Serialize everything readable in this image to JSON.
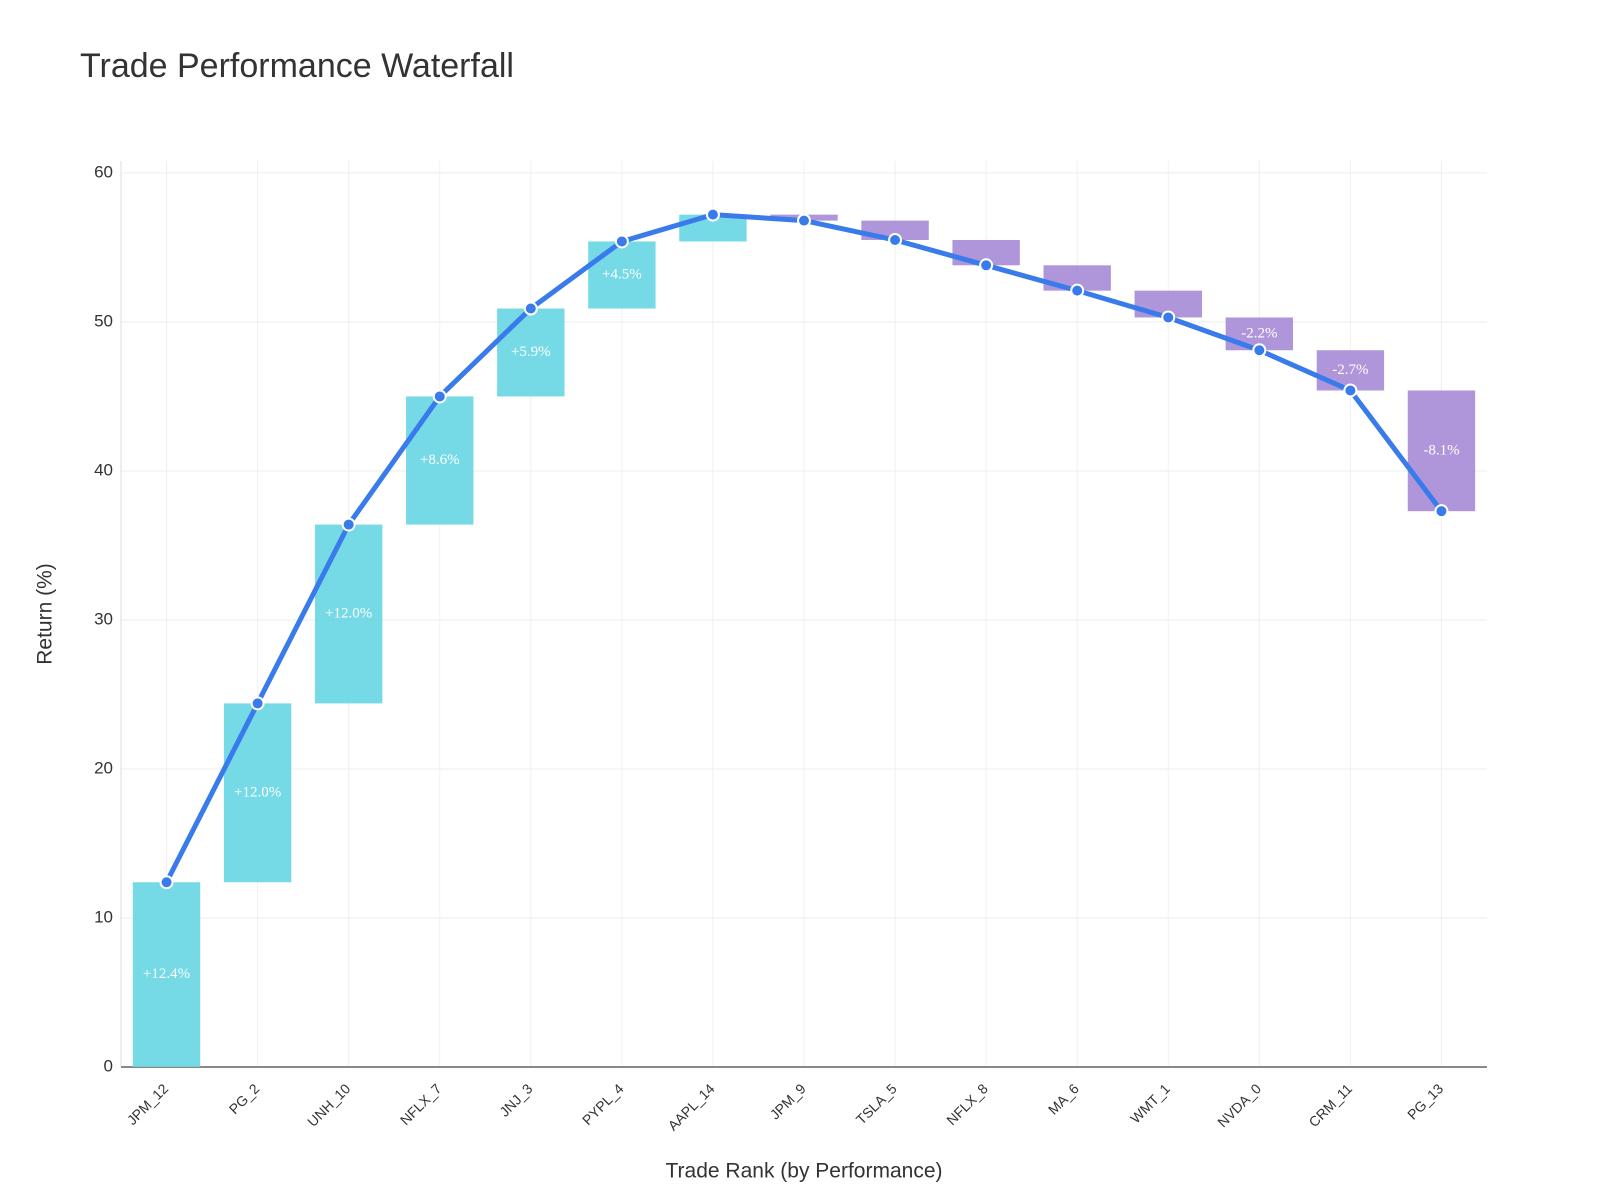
{
  "chart_data": {
    "type": "waterfall",
    "title": "Trade Performance Waterfall",
    "x_label": "Trade Rank (by Performance)",
    "y_label": "Return (%)",
    "categories": [
      "JPM_12",
      "PG_2",
      "UNH_10",
      "NFLX_7",
      "JNJ_3",
      "PYPL_4",
      "AAPL_14",
      "JPM_9",
      "TSLA_5",
      "NFLX_8",
      "MA_6",
      "WMT_1",
      "NVDA_0",
      "CRM_11",
      "PG_13"
    ],
    "values": [
      12.4,
      12.0,
      12.0,
      8.6,
      5.9,
      4.5,
      1.8,
      -0.4,
      -1.3,
      -1.7,
      -1.7,
      -1.8,
      -2.2,
      -2.7,
      -8.1
    ],
    "value_labels": [
      "+12.4%",
      "+12.0%",
      "+12.0%",
      "+8.6%",
      "+5.9%",
      "+4.5%",
      null,
      null,
      null,
      null,
      null,
      null,
      "-2.2%",
      "-2.7%",
      "-8.1%"
    ],
    "increase_color": "#67d6e3",
    "decrease_color": "#a68ad6",
    "line_color": "#3a7bec",
    "ylim": [
      0,
      60.8
    ],
    "yticks": [
      0,
      10,
      20,
      30,
      40,
      50,
      60
    ],
    "grid": true
  }
}
